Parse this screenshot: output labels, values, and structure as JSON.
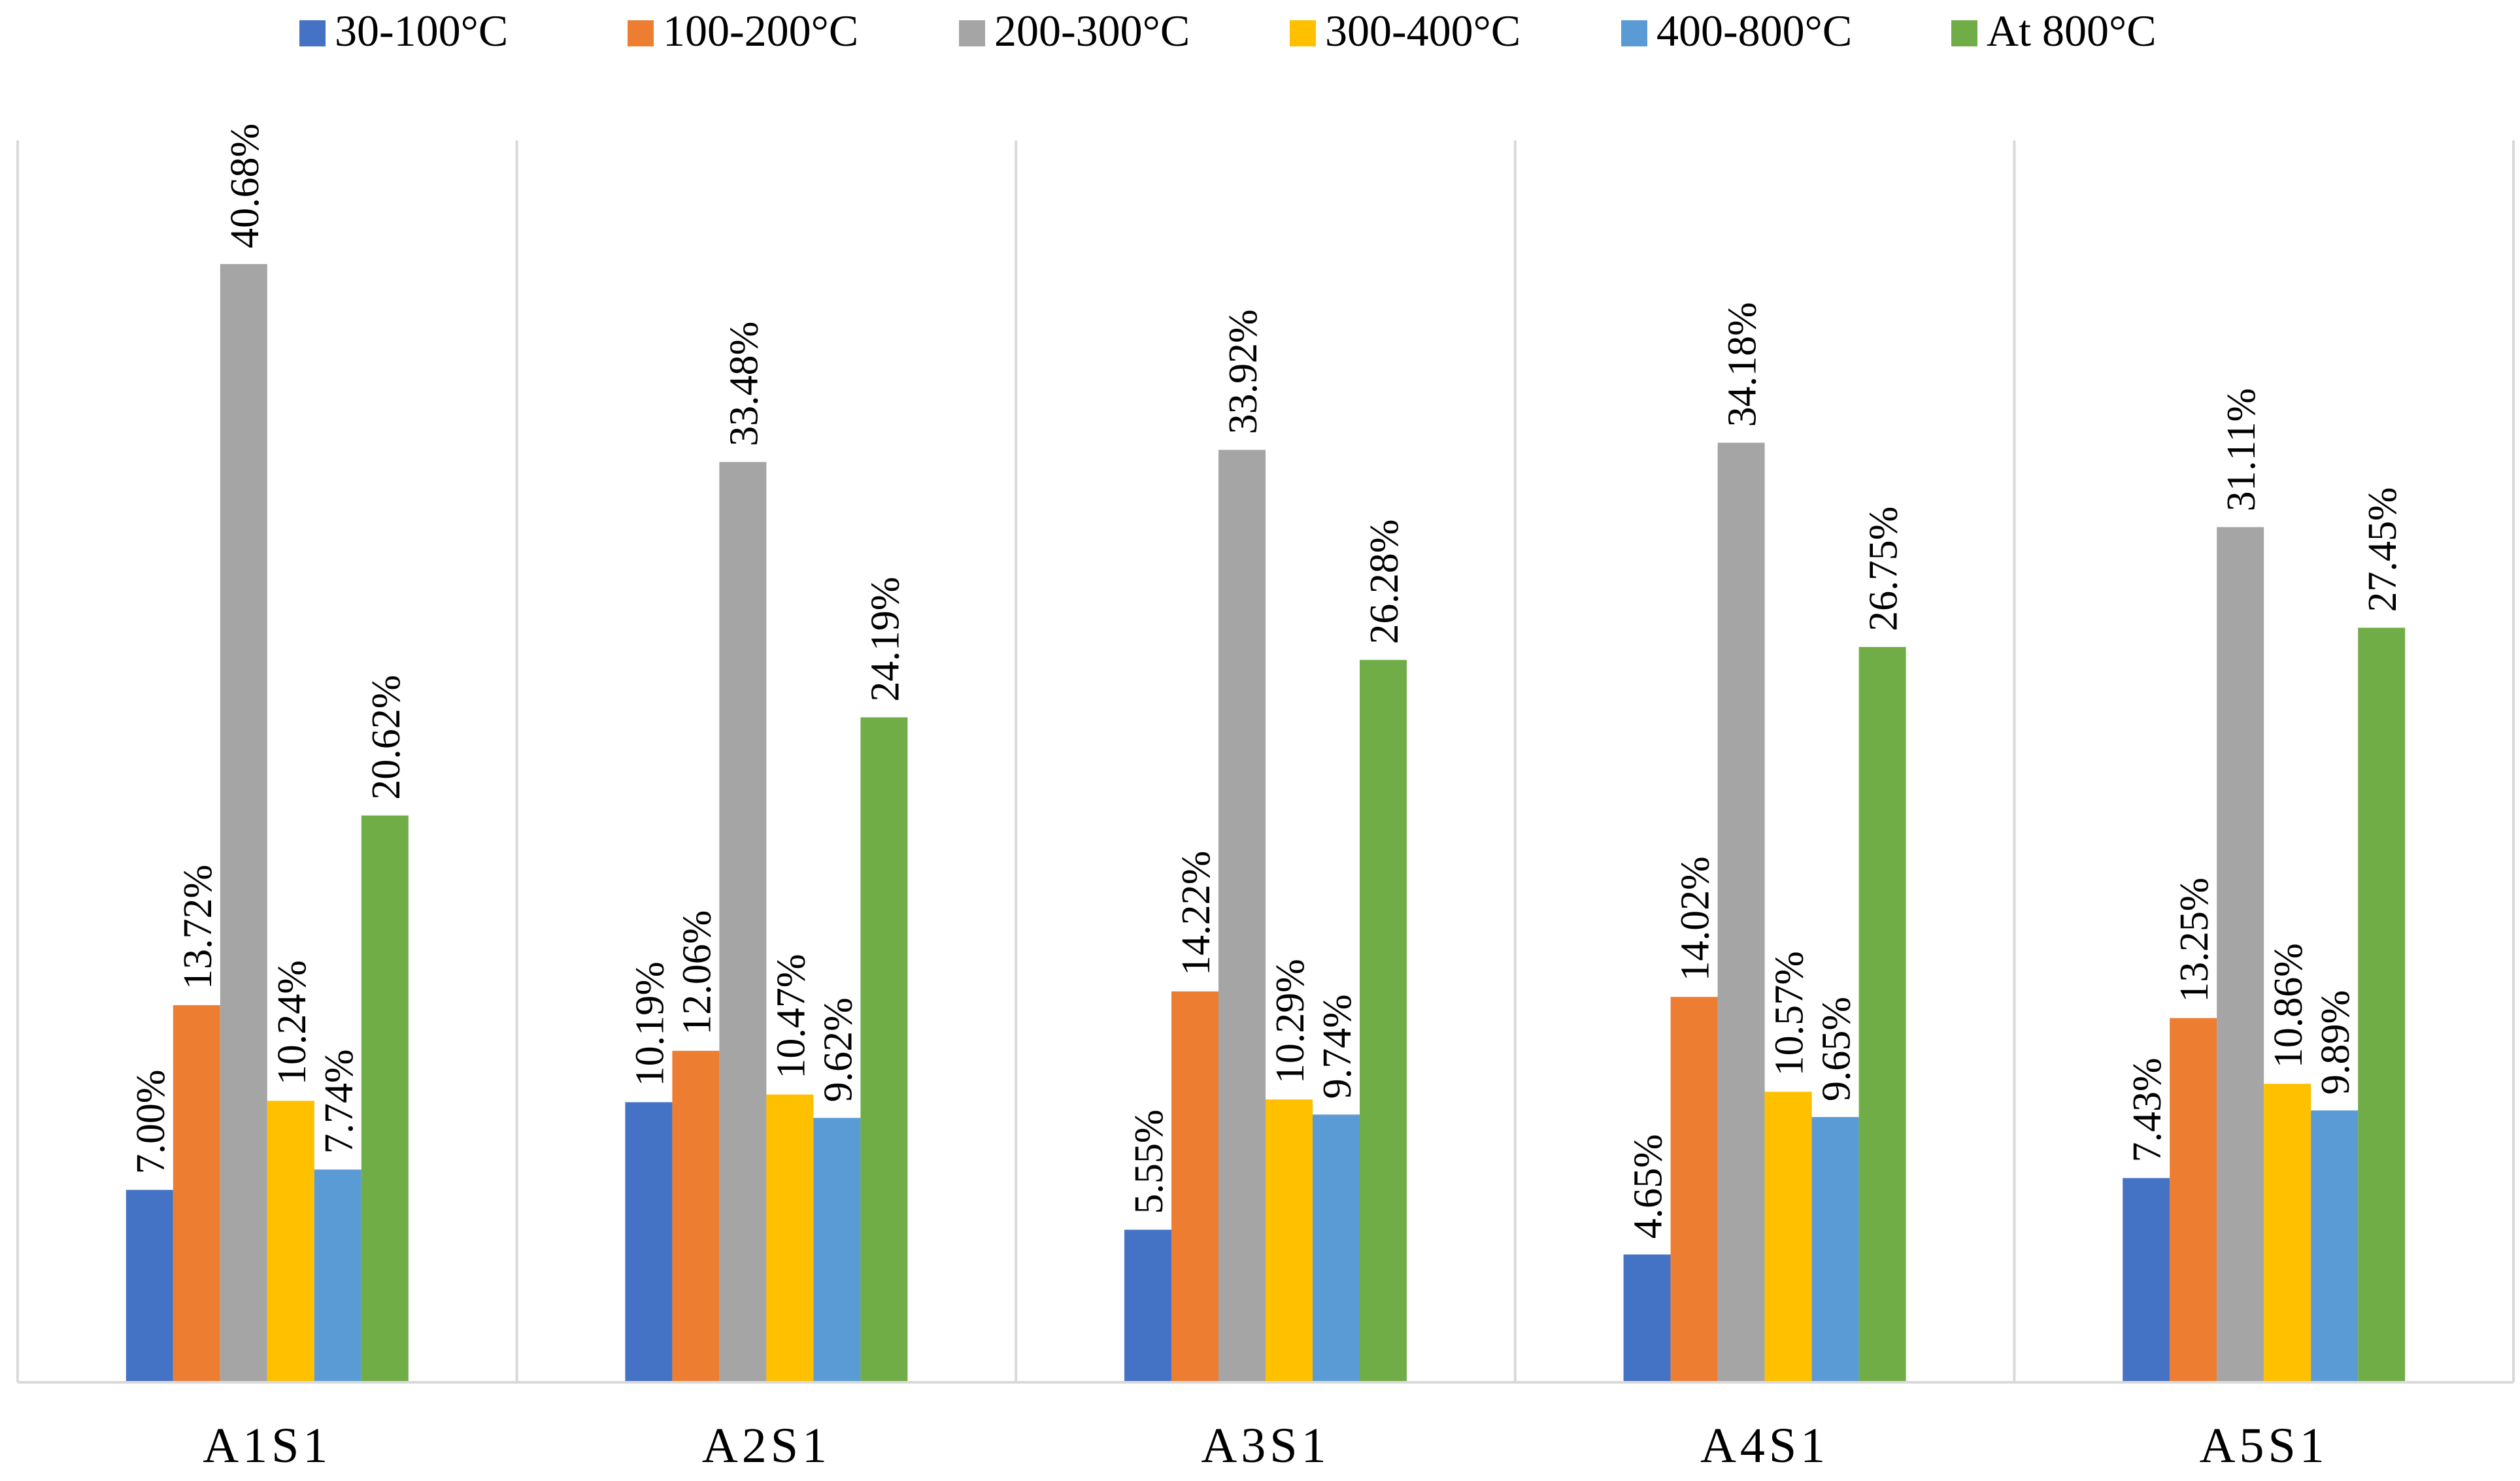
{
  "chart_data": {
    "type": "bar",
    "categories": [
      "A1S1",
      "A2S1",
      "A3S1",
      "A4S1",
      "A5S1"
    ],
    "series": [
      {
        "name": "30-100°C",
        "color": "#4472C4",
        "values": [
          7.0,
          10.19,
          5.55,
          4.65,
          7.43
        ],
        "labels": [
          "7.00%",
          "10.19%",
          "5.55%",
          "4.65%",
          "7.43%"
        ]
      },
      {
        "name": "100-200°C",
        "color": "#ED7D31",
        "values": [
          13.72,
          12.06,
          14.22,
          14.02,
          13.25
        ],
        "labels": [
          "13.72%",
          "12.06%",
          "14.22%",
          "14.02%",
          "13.25%"
        ]
      },
      {
        "name": "200-300°C",
        "color": "#A5A5A5",
        "values": [
          40.68,
          33.48,
          33.92,
          34.18,
          31.11
        ],
        "labels": [
          "40.68%",
          "33.48%",
          "33.92%",
          "34.18%",
          "31.11%"
        ]
      },
      {
        "name": "300-400°C",
        "color": "#FFC000",
        "values": [
          10.24,
          10.47,
          10.29,
          10.57,
          10.86
        ],
        "labels": [
          "10.24%",
          "10.47%",
          "10.29%",
          "10.57%",
          "10.86%"
        ]
      },
      {
        "name": "400-800°C",
        "color": "#5B9BD5",
        "values": [
          7.74,
          9.62,
          9.74,
          9.65,
          9.89
        ],
        "labels": [
          "7.74%",
          "9.62%",
          "9.74%",
          "9.65%",
          "9.89%"
        ]
      },
      {
        "name": "At 800°C",
        "color": "#70AD47",
        "values": [
          20.62,
          24.19,
          26.28,
          26.75,
          27.45
        ],
        "labels": [
          "20.62%",
          "24.19%",
          "26.28%",
          "26.75%",
          "27.45%"
        ]
      }
    ],
    "title": "",
    "xlabel": "",
    "ylabel": "",
    "ylim": [
      0,
      50
    ],
    "grid": "vertical category separators",
    "legend": "top-center",
    "data_labels": "rotated vertical above bars"
  }
}
